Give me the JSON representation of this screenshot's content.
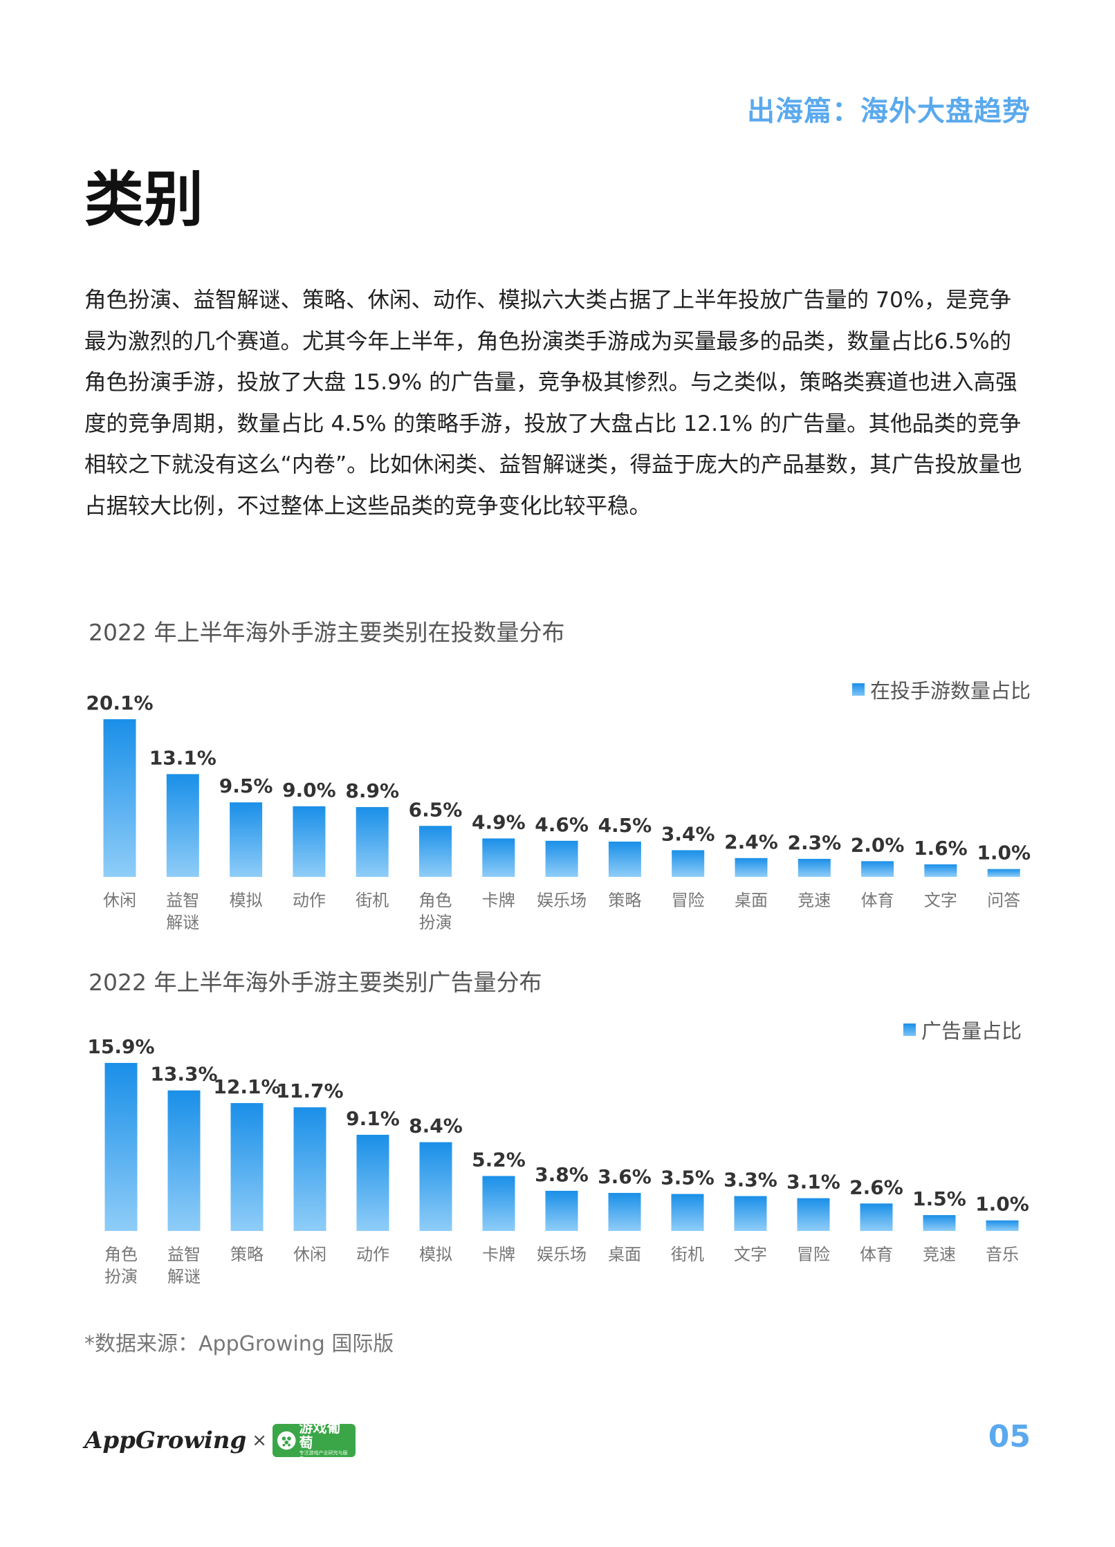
{
  "header": {
    "section_tag": "出海篇：海外大盘趋势"
  },
  "page_title": "类别",
  "body_text": "角色扮演、益智解谜、策略、休闲、动作、模拟六大类占据了上半年投放广告量的 70%，是竞争最为激烈的几个赛道。尤其今年上半年，角色扮演类手游成为买量最多的品类，数量占比6.5%的角色扮演手游，投放了大盘 15.9% 的广告量，竞争极其惨烈。与之类似，策略类赛道也进入高强度的竞争周期，数量占比 4.5% 的策略手游，投放了大盘占比 12.1% 的广告量。其他品类的竞争相较之下就没有这么“内卷”。比如休闲类、益智解谜类，得益于庞大的产品基数，其广告投放量也占据较大比例，不过整体上这些品类的竞争变化比较平稳。",
  "chart_data": [
    {
      "type": "bar",
      "title": "2022 年上半年海外手游主要类别在投数量分布",
      "categories": [
        "休闲",
        "益智\n解谜",
        "模拟",
        "动作",
        "街机",
        "角色\n扮演",
        "卡牌",
        "娱乐场",
        "策略",
        "冒险",
        "桌面",
        "竞速",
        "体育",
        "文字",
        "问答"
      ],
      "series": [
        {
          "name": "在投手游数量占比",
          "values": [
            20.1,
            13.1,
            9.5,
            9.0,
            8.9,
            6.5,
            4.9,
            4.6,
            4.5,
            3.4,
            2.4,
            2.3,
            2.0,
            1.6,
            1.0
          ]
        }
      ],
      "value_labels": [
        "20.1%",
        "13.1%",
        "9.5%",
        "9.0%",
        "8.9%",
        "6.5%",
        "4.9%",
        "4.6%",
        "4.5%",
        "3.4%",
        "2.4%",
        "2.3%",
        "2.0%",
        "1.6%",
        "1.0%"
      ],
      "legend_position": "top-right",
      "grid": false,
      "ylim": [
        0,
        20.1
      ]
    },
    {
      "type": "bar",
      "title": "2022 年上半年海外手游主要类别广告量分布",
      "categories": [
        "角色\n扮演",
        "益智\n解谜",
        "策略",
        "休闲",
        "动作",
        "模拟",
        "卡牌",
        "娱乐场",
        "桌面",
        "街机",
        "文字",
        "冒险",
        "体育",
        "竞速",
        "音乐"
      ],
      "series": [
        {
          "name": "广告量占比",
          "values": [
            15.9,
            13.3,
            12.1,
            11.7,
            9.1,
            8.4,
            5.2,
            3.8,
            3.6,
            3.5,
            3.3,
            3.1,
            2.6,
            1.5,
            1.0
          ]
        }
      ],
      "value_labels": [
        "15.9%",
        "13.3%",
        "12.1%",
        "11.7%",
        "9.1%",
        "8.4%",
        "5.2%",
        "3.8%",
        "3.6%",
        "3.5%",
        "3.3%",
        "3.1%",
        "2.6%",
        "1.5%",
        "1.0%"
      ],
      "legend_position": "top-right",
      "grid": false,
      "ylim": [
        0,
        15.9
      ]
    }
  ],
  "source_note": "*数据来源：AppGrowing 国际版",
  "footer": {
    "logo_appgrowing": "AppGrowing",
    "logo_times": "×",
    "logo_partner": "游戏葡萄",
    "logo_partner_sub": "专注游戏产业研究与服务",
    "page_number": "05"
  },
  "colors": {
    "accent": "#5aa9ee",
    "bar_top": "#1a8fe8",
    "bar_bottom": "#8fcdf8",
    "partner_green": "#3ba648"
  },
  "icons": [
    "legend-swatch-icon",
    "grape-icon"
  ]
}
